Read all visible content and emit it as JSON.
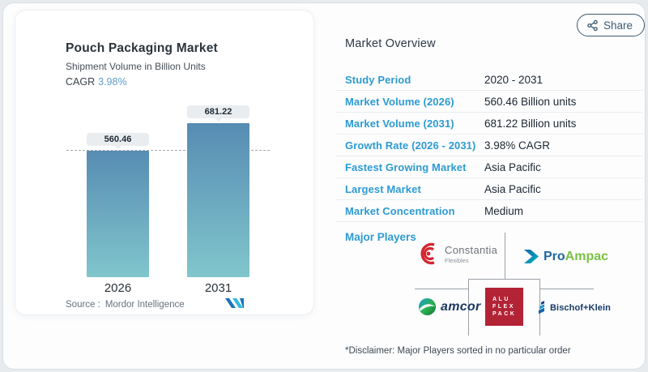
{
  "header": {
    "share_label": "Share"
  },
  "chart_card": {
    "title": "Pouch Packaging Market",
    "subtitle": "Shipment Volume in Billion Units",
    "cagr_label": "CAGR",
    "cagr_value": "3.98%",
    "source_label": "Source :",
    "source_name": "Mordor Intelligence"
  },
  "chart_data": {
    "type": "bar",
    "categories": [
      "2026",
      "2031"
    ],
    "values": [
      560.46,
      681.22
    ],
    "title": "Pouch Packaging Market",
    "ylabel": "Shipment Volume in Billion Units",
    "ylim": [
      0,
      700
    ],
    "grid": false,
    "legend": "none",
    "data_labels": [
      "560.46",
      "681.22"
    ],
    "reference_line_value": 560.46,
    "cagr": "3.98%",
    "bar_gradient_top": "#578cb3",
    "bar_gradient_bottom": "#80c6cc"
  },
  "overview": {
    "heading": "Market Overview",
    "rows": [
      {
        "label": "Study Period",
        "value": "2020 - 2031"
      },
      {
        "label": "Market Volume (2026)",
        "value": "560.46 Billion units"
      },
      {
        "label": "Market Volume (2031)",
        "value": "681.22 Billion units"
      },
      {
        "label": "Growth Rate (2026 - 2031)",
        "value": "3.98% CAGR"
      },
      {
        "label": "Fastest Growing Market",
        "value": "Asia Pacific"
      },
      {
        "label": "Largest Market",
        "value": "Asia Pacific"
      },
      {
        "label": "Market Concentration",
        "value": "Medium"
      }
    ],
    "major_players_label": "Major Players",
    "disclaimer": "*Disclaimer: Major Players sorted in no particular order"
  },
  "players": {
    "constantia_name": "Constantia",
    "constantia_sub": "Flexibles",
    "proampac_pro": "Pro",
    "proampac_ampac": "Ampac",
    "amcor": "amcor",
    "alu_line1": "ALU",
    "alu_line2": "FLEX",
    "alu_line3": "PACK",
    "bischof": "Bischof+Klein"
  },
  "colors": {
    "accent_blue_labels": "#2d9bd1",
    "cagr_blue": "#5e9dcb",
    "share_slate": "#3d5a70",
    "bar_gradient_top": "#578cb3",
    "bar_gradient_bottom": "#80c6cc",
    "aluflexpack_red": "#b32336",
    "proampac_green": "#7ac143",
    "dashed_line_gray": "#a2aab1"
  }
}
